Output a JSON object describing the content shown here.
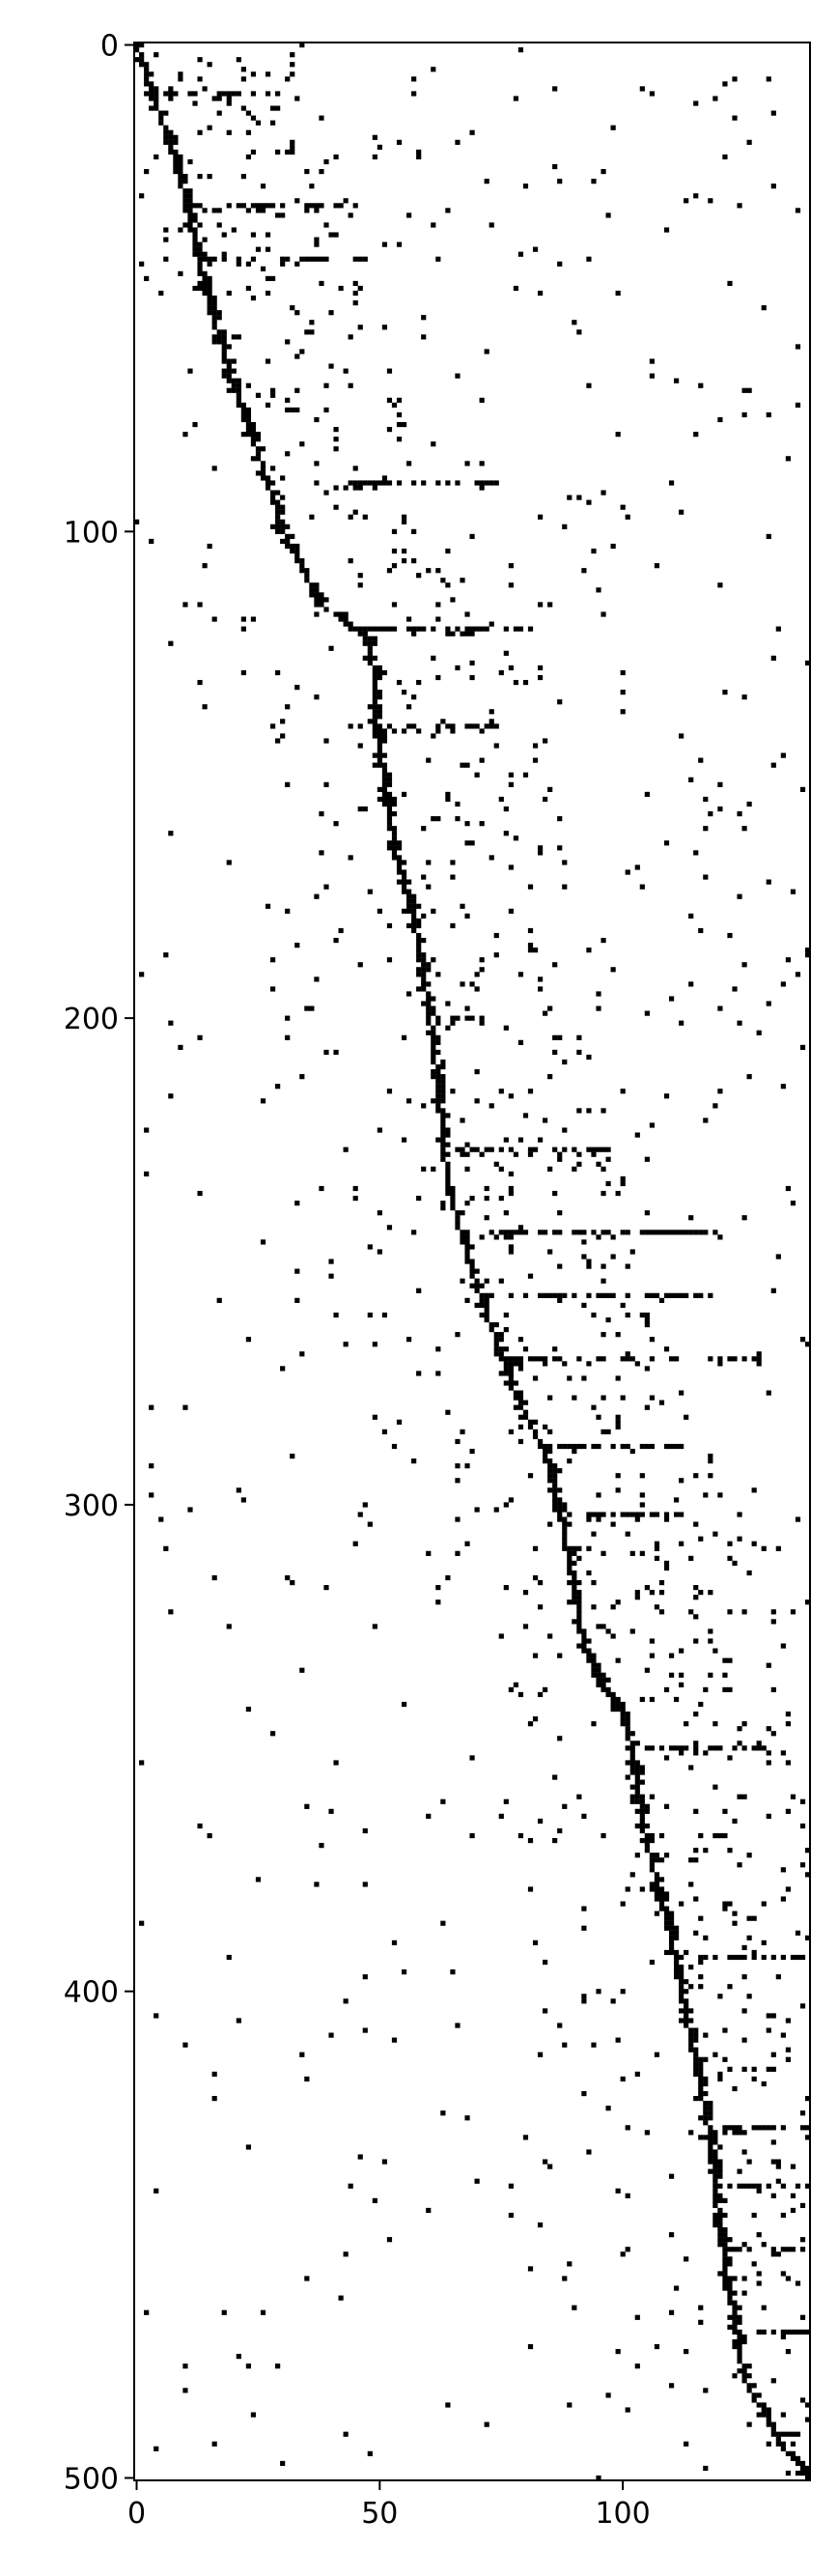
{
  "chart_data": {
    "type": "heatmap",
    "title": "",
    "xlabel": "",
    "ylabel": "",
    "xlim": [
      0,
      139
    ],
    "ylim": [
      501,
      0
    ],
    "x_ticks": [
      0,
      50,
      100
    ],
    "y_ticks": [
      0,
      100,
      200,
      300,
      400,
      500
    ],
    "grid": false,
    "legend": "none",
    "colormap": [
      "#ffffff",
      "#000000"
    ],
    "description_of_values": "binary matrix; filled cells = 1",
    "band": [
      [
        0,
        0
      ],
      [
        10,
        3
      ],
      [
        20,
        7
      ],
      [
        35,
        11
      ],
      [
        50,
        14
      ],
      [
        70,
        20
      ],
      [
        90,
        27
      ],
      [
        100,
        30
      ],
      [
        115,
        38
      ],
      [
        122,
        48
      ],
      [
        145,
        50
      ],
      [
        165,
        53
      ],
      [
        185,
        58
      ],
      [
        205,
        61
      ],
      [
        235,
        64
      ],
      [
        255,
        70
      ],
      [
        275,
        77
      ],
      [
        290,
        84
      ],
      [
        305,
        88
      ],
      [
        330,
        92
      ],
      [
        345,
        101
      ],
      [
        365,
        104
      ],
      [
        390,
        110
      ],
      [
        420,
        116
      ],
      [
        430,
        118
      ],
      [
        450,
        120
      ],
      [
        480,
        125
      ],
      [
        495,
        134
      ],
      [
        501,
        139
      ]
    ],
    "horizontal_runs": [
      [
        10,
        2,
        30
      ],
      [
        33,
        12,
        45
      ],
      [
        44,
        14,
        48
      ],
      [
        90,
        41,
        78
      ],
      [
        120,
        46,
        82
      ],
      [
        140,
        49,
        74
      ],
      [
        200,
        62,
        72
      ],
      [
        227,
        66,
        100
      ],
      [
        244,
        68,
        120
      ],
      [
        257,
        71,
        118
      ],
      [
        270,
        77,
        128
      ],
      [
        288,
        83,
        112
      ],
      [
        302,
        88,
        112
      ],
      [
        350,
        105,
        130
      ],
      [
        393,
        111,
        138
      ],
      [
        428,
        118,
        138
      ],
      [
        440,
        119,
        138
      ],
      [
        453,
        121,
        138
      ],
      [
        470,
        124,
        138
      ],
      [
        491,
        133,
        138
      ]
    ],
    "scatter_density": 0.05
  },
  "colors": {
    "cell": "#000000",
    "background": "#ffffff",
    "axis": "#000000"
  }
}
